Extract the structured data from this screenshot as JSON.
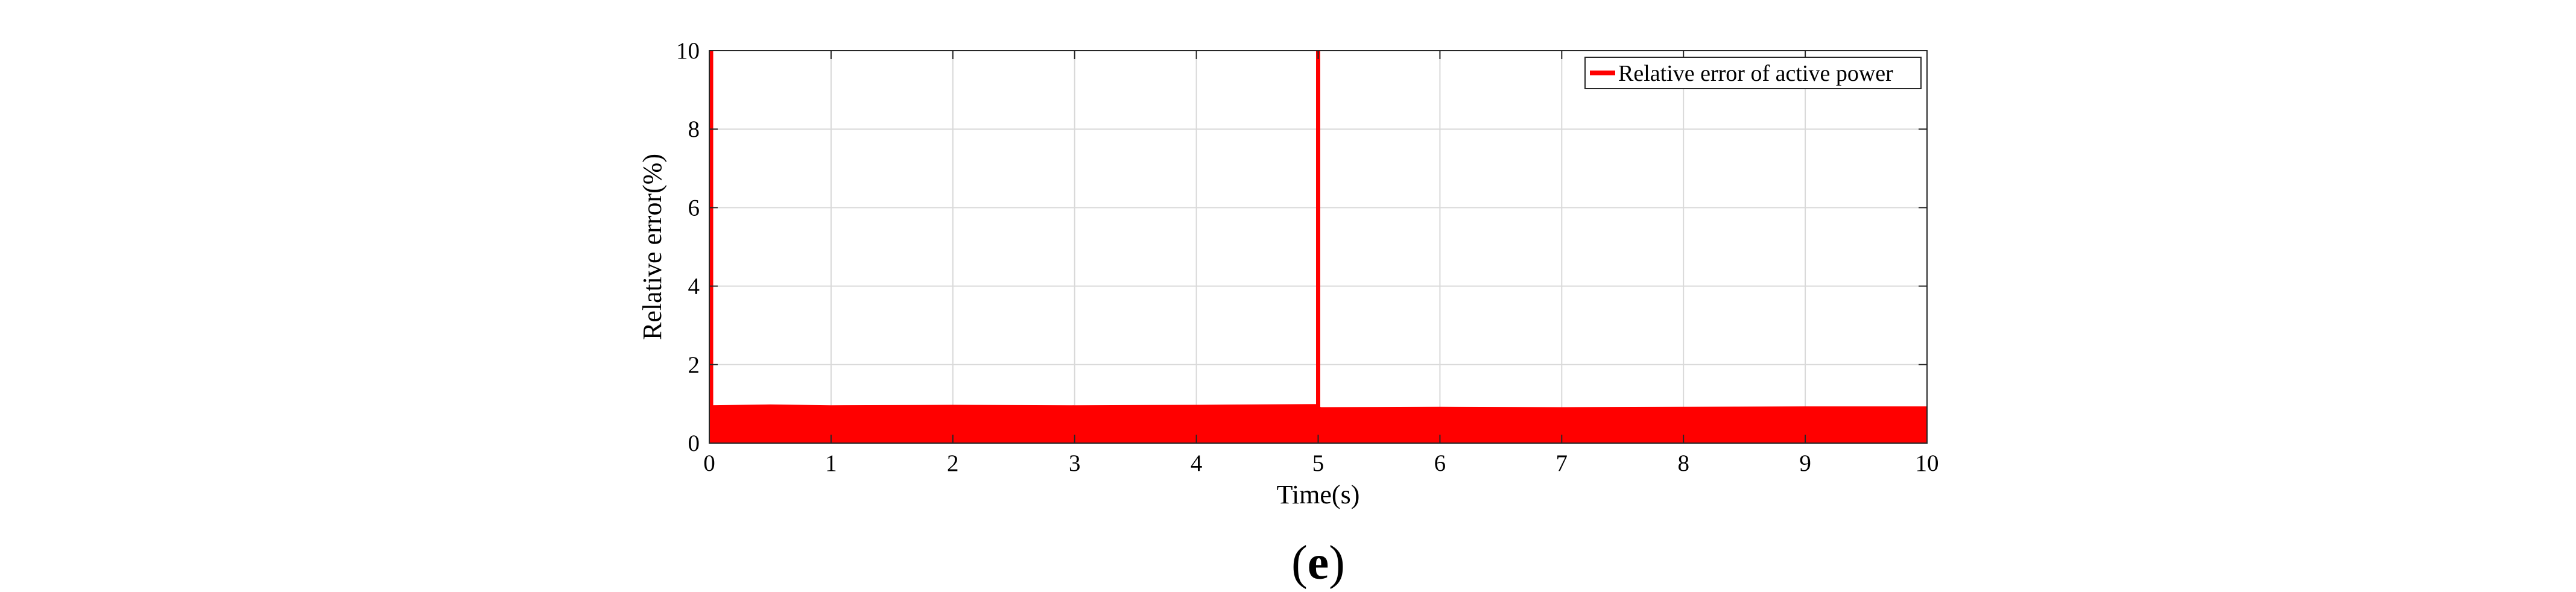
{
  "chart_data": {
    "type": "area",
    "xlabel": "Time(s)",
    "ylabel": "Relative error(%)",
    "xlim": [
      0,
      10
    ],
    "ylim": [
      0,
      10
    ],
    "xticks": [
      "0",
      "1",
      "2",
      "3",
      "4",
      "5",
      "6",
      "7",
      "8",
      "9",
      "10"
    ],
    "yticks": [
      "0",
      "2",
      "4",
      "6",
      "8",
      "10"
    ],
    "grid": true,
    "legend_position": "top-right",
    "series": [
      {
        "name": "Relative error of active power",
        "color": "#ff0000",
        "band": {
          "x": [
            0,
            0.5,
            1,
            2,
            3,
            4,
            4.98,
            5.02,
            6,
            7,
            8,
            9,
            10
          ],
          "y_upper": [
            0.95,
            0.97,
            0.95,
            0.96,
            0.95,
            0.96,
            0.98,
            0.9,
            0.91,
            0.9,
            0.91,
            0.92,
            0.92
          ],
          "y_lower": [
            0,
            0,
            0,
            0,
            0,
            0,
            0,
            0,
            0,
            0,
            0,
            0,
            0
          ]
        },
        "spikes": [
          {
            "x": 0,
            "y": 10
          },
          {
            "x": 5,
            "y": 10
          }
        ]
      }
    ]
  },
  "panel_label": {
    "open": "(",
    "letter": "e",
    "close": ")"
  }
}
